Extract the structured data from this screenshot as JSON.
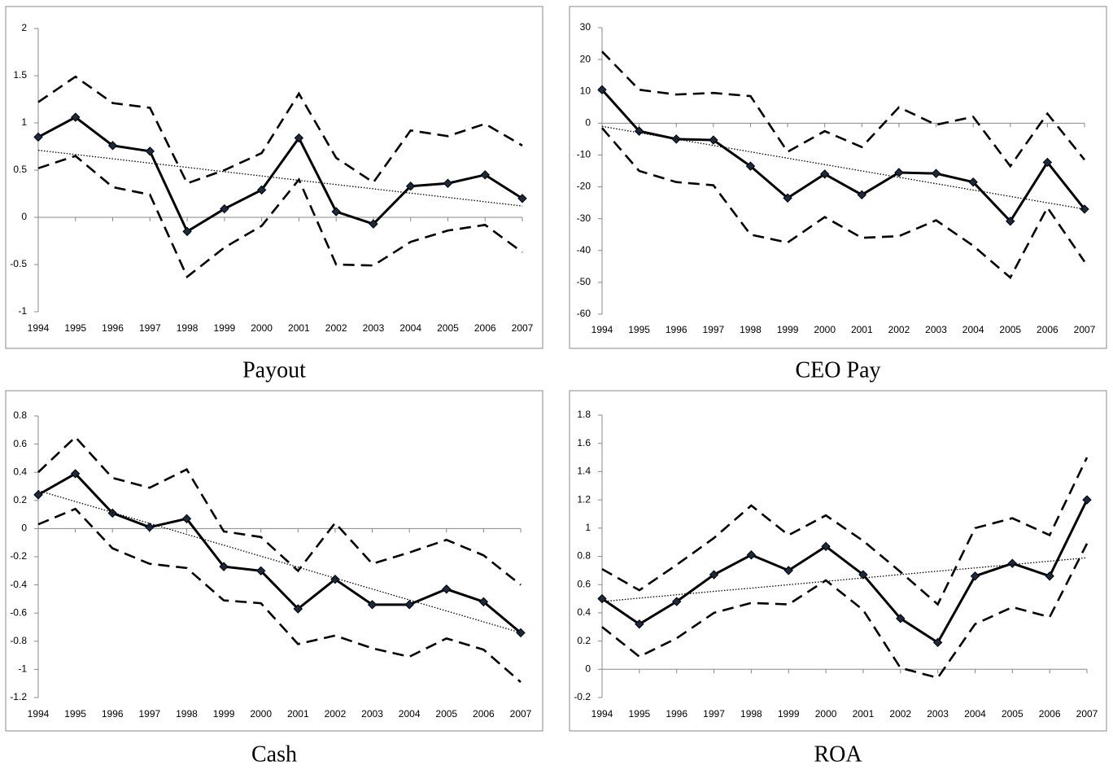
{
  "chart_data": [
    {
      "type": "line",
      "title": "Payout",
      "categories": [
        "1994",
        "1995",
        "1996",
        "1997",
        "1998",
        "1999",
        "2000",
        "2001",
        "2002",
        "2003",
        "2004",
        "2005",
        "2006",
        "2007"
      ],
      "ylim": [
        -1,
        2
      ],
      "yticks": [
        -1,
        -0.5,
        0,
        0.5,
        1,
        1.5,
        2
      ],
      "series": [
        {
          "color": "#000000",
          "style": "solid",
          "marker": "diamond",
          "values": [
            0.85,
            1.06,
            0.76,
            0.7,
            -0.15,
            0.09,
            0.29,
            0.84,
            0.06,
            -0.07,
            0.33,
            0.36,
            0.45,
            0.2
          ]
        },
        {
          "color": "#000000",
          "style": "dashed",
          "values": [
            1.22,
            1.49,
            1.21,
            1.16,
            0.36,
            0.5,
            0.68,
            1.31,
            0.63,
            0.37,
            0.92,
            0.86,
            0.99,
            0.76
          ]
        },
        {
          "color": "#000000",
          "style": "dashed",
          "values": [
            0.52,
            0.65,
            0.32,
            0.24,
            -0.63,
            -0.32,
            -0.09,
            0.4,
            -0.5,
            -0.51,
            -0.26,
            -0.14,
            -0.08,
            -0.37
          ]
        },
        {
          "color": "#000000",
          "style": "dotted",
          "values": [
            0.71,
            0.665,
            0.62,
            0.574,
            0.529,
            0.483,
            0.438,
            0.392,
            0.347,
            0.302,
            0.256,
            0.211,
            0.165,
            0.12
          ]
        }
      ]
    },
    {
      "type": "line",
      "title": "CEO Pay",
      "categories": [
        "1994",
        "1995",
        "1996",
        "1997",
        "1998",
        "1999",
        "2000",
        "2001",
        "2002",
        "2003",
        "2004",
        "2005",
        "2006",
        "2007"
      ],
      "ylim": [
        -60,
        30
      ],
      "yticks": [
        -60,
        -50,
        -40,
        -30,
        -20,
        -10,
        0,
        10,
        20,
        30
      ],
      "series": [
        {
          "color": "#000000",
          "style": "solid",
          "marker": "diamond",
          "values": [
            10.5,
            -2.5,
            -5,
            -5.3,
            -13.5,
            -23.5,
            -16,
            -22.5,
            -15.5,
            -15.8,
            -18.5,
            -30.8,
            -12.3,
            -27
          ]
        },
        {
          "color": "#000000",
          "style": "dashed",
          "values": [
            22.5,
            10.5,
            9,
            9.5,
            8.5,
            -9,
            -2.5,
            -7.5,
            5,
            -0.5,
            2,
            -13.5,
            3,
            -11.5
          ]
        },
        {
          "color": "#000000",
          "style": "dashed",
          "values": [
            -1.5,
            -15,
            -18.5,
            -19.5,
            -35,
            -37.5,
            -29.5,
            -36,
            -35.5,
            -30.5,
            -38.5,
            -48.5,
            -26.5,
            -43.5
          ]
        },
        {
          "color": "#000000",
          "style": "dotted",
          "values": [
            -1,
            -3,
            -5,
            -7,
            -9,
            -11,
            -13,
            -15,
            -17,
            -19,
            -21,
            -23,
            -25,
            -27
          ]
        }
      ]
    },
    {
      "type": "line",
      "title": "Cash",
      "categories": [
        "1994",
        "1995",
        "1996",
        "1997",
        "1998",
        "1999",
        "2000",
        "2001",
        "2002",
        "2003",
        "2004",
        "2005",
        "2006",
        "2007"
      ],
      "ylim": [
        -1.2,
        0.8
      ],
      "yticks": [
        -1.2,
        -1,
        -0.8,
        -0.6,
        -0.4,
        -0.2,
        0,
        0.2,
        0.4,
        0.6,
        0.8
      ],
      "series": [
        {
          "color": "#000000",
          "style": "solid",
          "marker": "diamond",
          "values": [
            0.24,
            0.39,
            0.11,
            0.01,
            0.07,
            -0.27,
            -0.3,
            -0.57,
            -0.36,
            -0.54,
            -0.54,
            -0.43,
            -0.52,
            -0.74
          ]
        },
        {
          "color": "#000000",
          "style": "dashed",
          "values": [
            0.4,
            0.65,
            0.36,
            0.29,
            0.42,
            -0.02,
            -0.06,
            -0.3,
            0.04,
            -0.25,
            -0.17,
            -0.08,
            -0.19,
            -0.4
          ]
        },
        {
          "color": "#000000",
          "style": "dashed",
          "values": [
            0.03,
            0.14,
            -0.14,
            -0.25,
            -0.28,
            -0.51,
            -0.53,
            -0.82,
            -0.76,
            -0.85,
            -0.91,
            -0.78,
            -0.86,
            -1.09
          ]
        },
        {
          "color": "#000000",
          "style": "dotted",
          "values": [
            0.27,
            0.192,
            0.115,
            0.037,
            -0.041,
            -0.118,
            -0.196,
            -0.274,
            -0.352,
            -0.429,
            -0.507,
            -0.585,
            -0.662,
            -0.74
          ]
        }
      ]
    },
    {
      "type": "line",
      "title": "ROA",
      "categories": [
        "1994",
        "1995",
        "1996",
        "1997",
        "1998",
        "1999",
        "2000",
        "2001",
        "2002",
        "2003",
        "2004",
        "2005",
        "2006",
        "2007"
      ],
      "ylim": [
        -0.2,
        1.8
      ],
      "yticks": [
        -0.2,
        0,
        0.2,
        0.4,
        0.6,
        0.8,
        1,
        1.2,
        1.4,
        1.6,
        1.8
      ],
      "series": [
        {
          "color": "#000000",
          "style": "solid",
          "marker": "diamond",
          "values": [
            0.5,
            0.32,
            0.48,
            0.67,
            0.81,
            0.7,
            0.87,
            0.67,
            0.36,
            0.19,
            0.66,
            0.75,
            0.66,
            1.2
          ]
        },
        {
          "color": "#000000",
          "style": "dashed",
          "values": [
            0.71,
            0.56,
            0.74,
            0.93,
            1.16,
            0.95,
            1.09,
            0.91,
            0.69,
            0.46,
            1.0,
            1.07,
            0.95,
            1.5
          ]
        },
        {
          "color": "#000000",
          "style": "dashed",
          "values": [
            0.3,
            0.09,
            0.22,
            0.4,
            0.47,
            0.46,
            0.63,
            0.42,
            0.01,
            -0.06,
            0.32,
            0.44,
            0.37,
            0.89
          ]
        },
        {
          "color": "#000000",
          "style": "dotted",
          "values": [
            0.48,
            0.504,
            0.528,
            0.552,
            0.575,
            0.599,
            0.623,
            0.647,
            0.671,
            0.695,
            0.718,
            0.742,
            0.766,
            0.79
          ]
        }
      ]
    }
  ]
}
